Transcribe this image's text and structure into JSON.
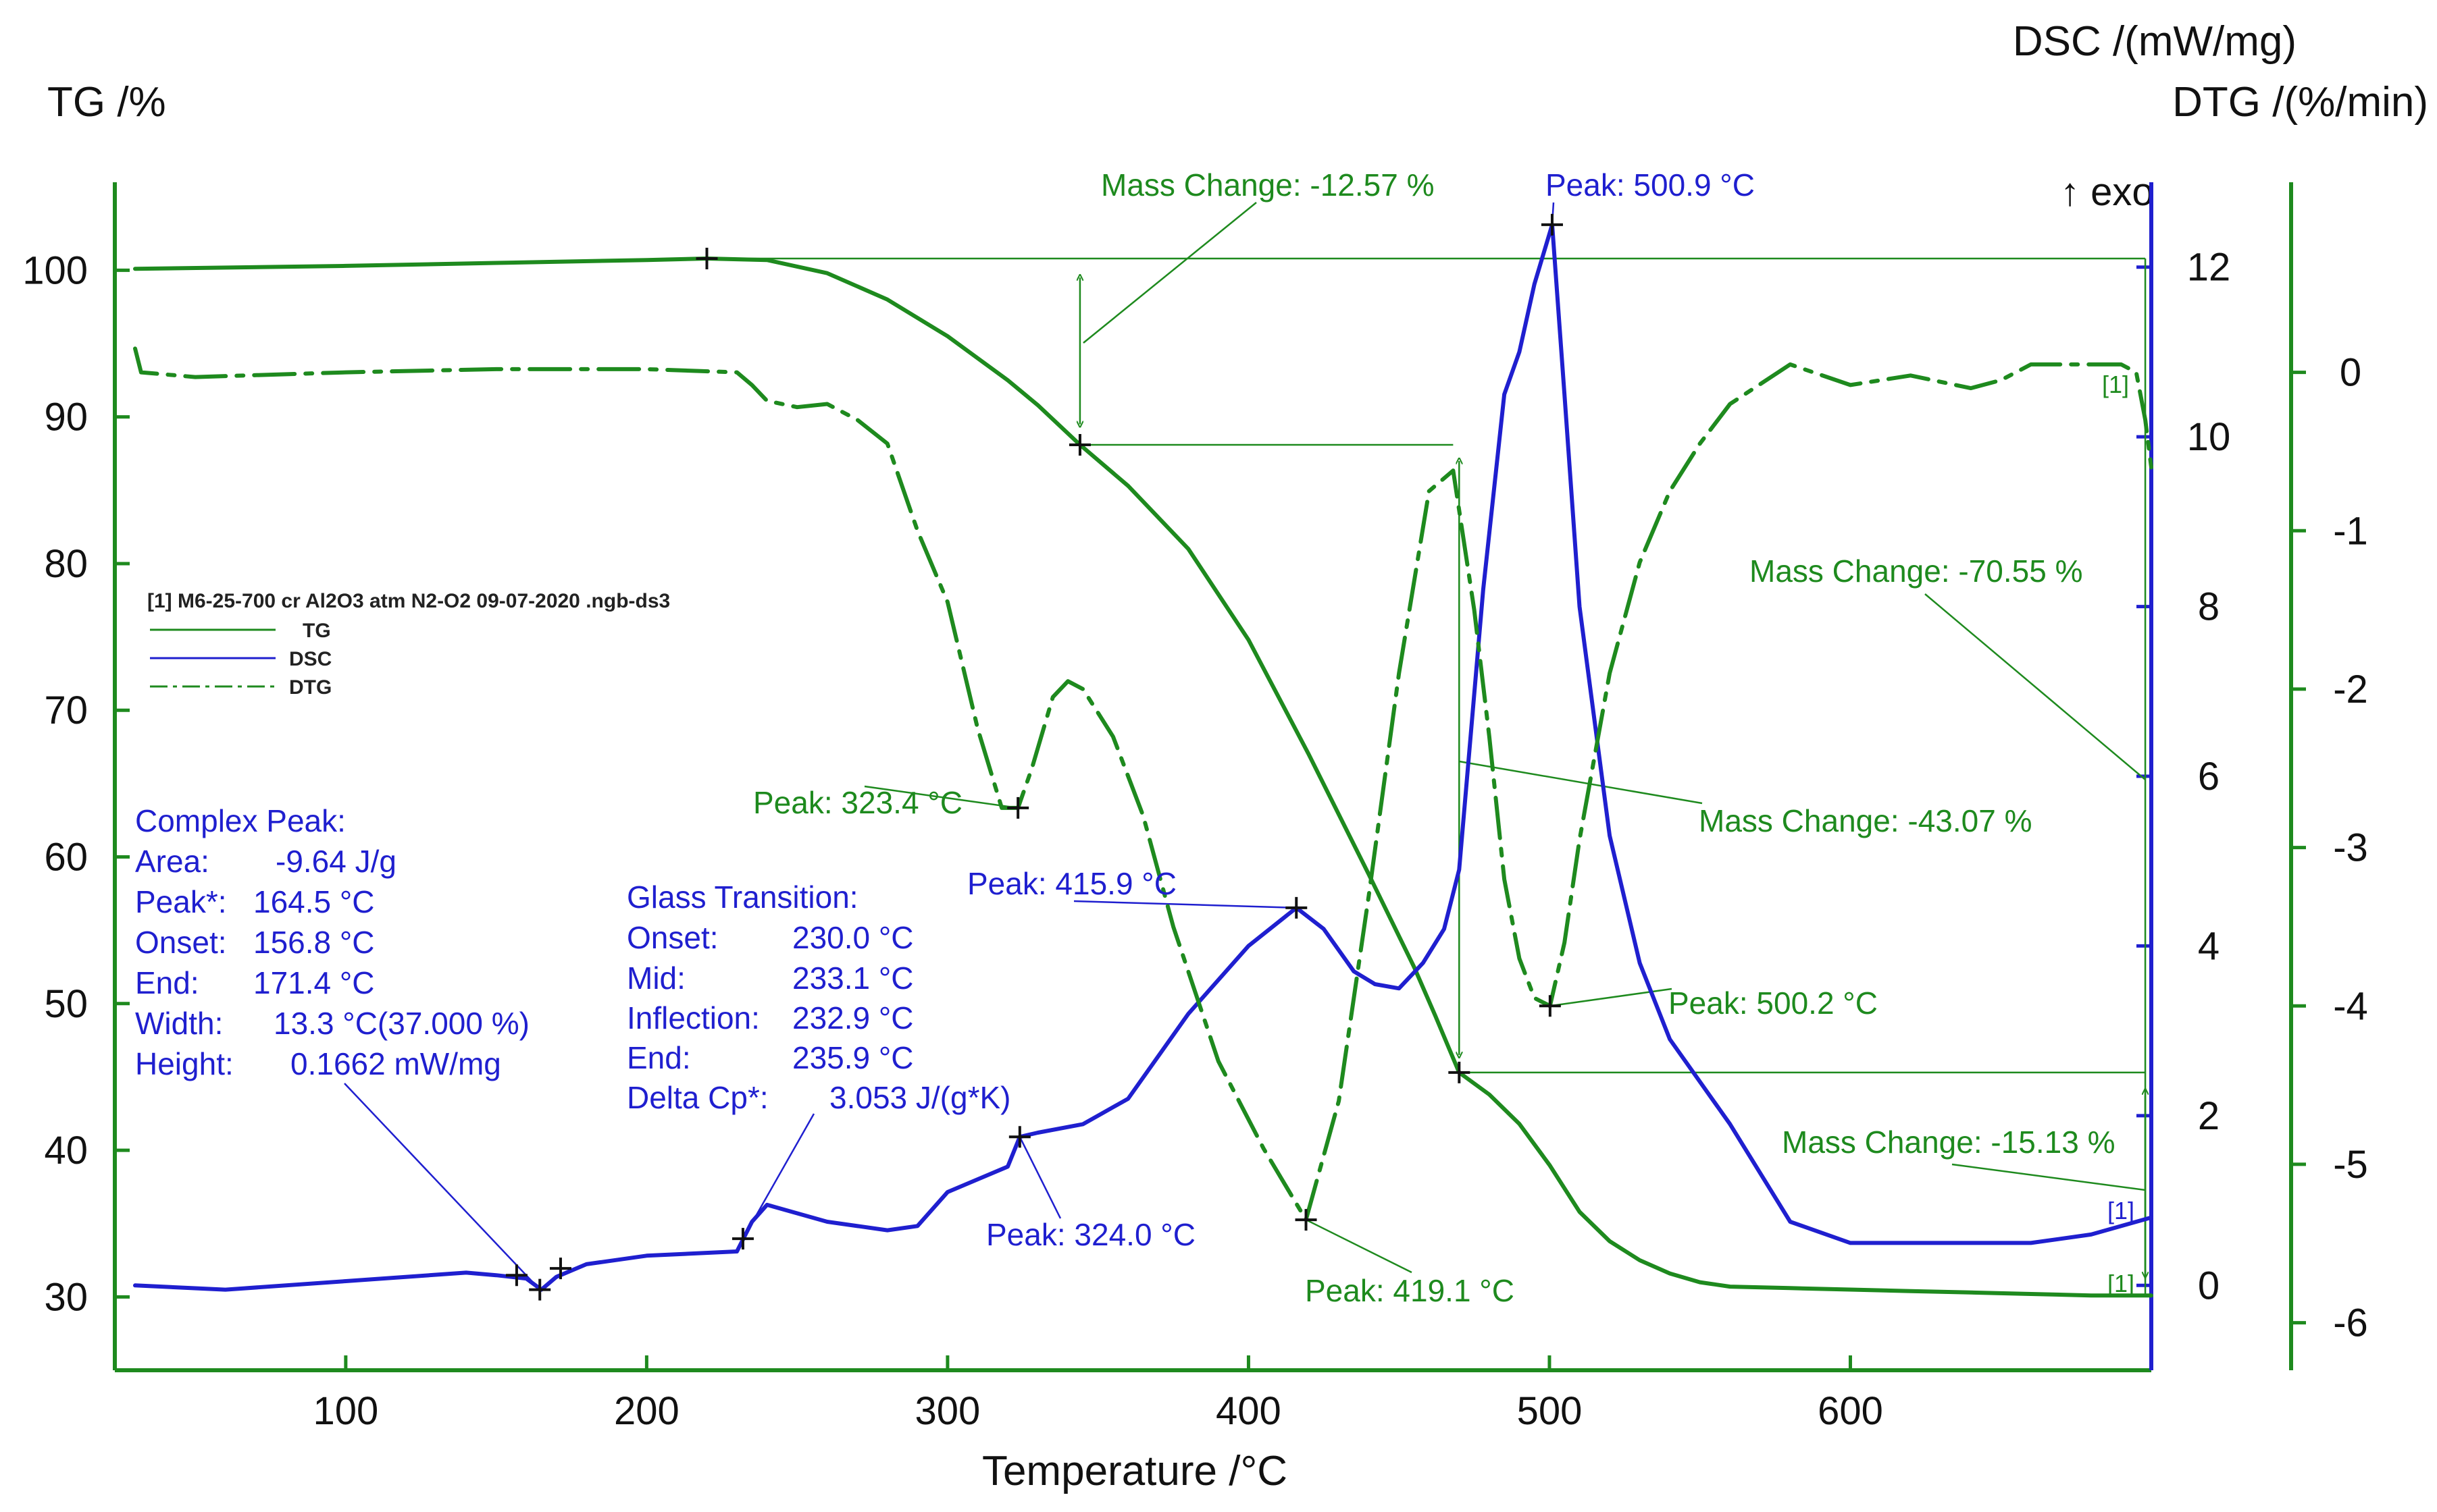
{
  "chart_data": {
    "type": "line",
    "axes": {
      "x": {
        "label": "Temperature /°C",
        "range": [
          30,
          700
        ],
        "ticks": [
          100,
          200,
          300,
          400,
          500,
          600
        ]
      },
      "y_tg": {
        "label": "TG /%",
        "range": [
          25,
          106
        ],
        "ticks": [
          100,
          90,
          80,
          70,
          60,
          50,
          40,
          30
        ]
      },
      "y_dsc": {
        "label": "DSC /(mW/mg)",
        "range": [
          -1,
          13
        ],
        "ticks": [
          12,
          10,
          8,
          6,
          4,
          2,
          0
        ],
        "arrow_label": "↑ exo"
      },
      "y_dtg": {
        "label": "DTG /(%/min)",
        "range": [
          -6.3,
          1.2
        ],
        "ticks": [
          0,
          -1,
          -2,
          -3,
          -4,
          -5,
          -6
        ]
      }
    },
    "legend": {
      "file": "[1] M6-25-700 cr Al2O3 atm N2-O2 09-07-2020 .ngb-ds3",
      "items": [
        "TG",
        "DSC",
        "DTG"
      ]
    },
    "series": [
      {
        "name": "TG",
        "axis": "y_tg",
        "color": "#1e8a1e",
        "dash": "solid",
        "x": [
          30,
          100,
          150,
          200,
          220,
          240,
          260,
          280,
          300,
          320,
          330,
          344,
          360,
          380,
          400,
          420,
          440,
          455,
          462,
          470,
          480,
          490,
          500,
          510,
          520,
          530,
          540,
          550,
          560,
          580,
          600,
          620,
          640,
          660,
          680,
          700
        ],
        "y": [
          100.1,
          100.3,
          100.5,
          100.7,
          100.8,
          100.7,
          99.8,
          98.0,
          95.5,
          92.5,
          90.8,
          88.1,
          85.3,
          81.0,
          74.8,
          67.0,
          58.8,
          52.5,
          49.2,
          45.3,
          43.8,
          41.8,
          39.0,
          35.8,
          33.8,
          32.5,
          31.6,
          31.0,
          30.7,
          30.6,
          30.5,
          30.4,
          30.3,
          30.2,
          30.1,
          30.1
        ]
      },
      {
        "name": "DSC",
        "axis": "y_dsc",
        "color": "#1f1fcf",
        "dash": "solid",
        "x": [
          30,
          60,
          100,
          140,
          150,
          160,
          165,
          170,
          180,
          200,
          230,
          235,
          240,
          260,
          280,
          290,
          300,
          310,
          320,
          324,
          330,
          345,
          360,
          380,
          400,
          415.9,
          425,
          435,
          442,
          450,
          458,
          465,
          470,
          478,
          485,
          490,
          495,
          500.9,
          505,
          510,
          520,
          530,
          540,
          560,
          580,
          600,
          620,
          640,
          660,
          680,
          700
        ],
        "y": [
          0.0,
          -0.05,
          0.05,
          0.15,
          0.12,
          0.08,
          -0.05,
          0.1,
          0.25,
          0.35,
          0.4,
          0.75,
          0.95,
          0.75,
          0.65,
          0.7,
          1.1,
          1.25,
          1.4,
          1.75,
          1.8,
          1.9,
          2.2,
          3.2,
          4.0,
          4.45,
          4.2,
          3.7,
          3.55,
          3.5,
          3.8,
          4.2,
          4.9,
          8.2,
          10.5,
          11.0,
          11.8,
          12.5,
          10.5,
          8.0,
          5.3,
          3.8,
          2.9,
          1.9,
          0.75,
          0.5,
          0.5,
          0.5,
          0.5,
          0.6,
          0.8
        ]
      },
      {
        "name": "DTG",
        "axis": "y_dtg",
        "color": "#1e8a1e",
        "dash": "dashdot",
        "x": [
          30,
          32,
          50,
          100,
          150,
          200,
          230,
          235,
          240,
          250,
          260,
          270,
          280,
          290,
          300,
          310,
          318,
          323.4,
          328,
          335,
          340,
          345,
          355,
          365,
          375,
          390,
          405,
          419.1,
          430,
          440,
          450,
          460,
          468,
          475,
          480,
          485,
          490,
          495,
          500.2,
          505,
          510,
          520,
          530,
          540,
          550,
          560,
          580,
          600,
          620,
          640,
          650,
          660,
          680,
          690,
          695,
          698,
          700
        ],
        "y": [
          0.15,
          0.0,
          -0.03,
          0.0,
          0.02,
          0.02,
          0.0,
          -0.08,
          -0.18,
          -0.22,
          -0.2,
          -0.3,
          -0.45,
          -1.0,
          -1.45,
          -2.25,
          -2.75,
          -2.75,
          -2.5,
          -2.05,
          -1.95,
          -2.0,
          -2.3,
          -2.8,
          -3.5,
          -4.35,
          -4.9,
          -5.35,
          -4.6,
          -3.3,
          -1.9,
          -0.75,
          -0.62,
          -1.5,
          -2.3,
          -3.2,
          -3.7,
          -3.95,
          -4.0,
          -3.6,
          -2.95,
          -1.9,
          -1.2,
          -0.75,
          -0.45,
          -0.2,
          0.05,
          -0.08,
          -0.02,
          -0.1,
          -0.05,
          0.05,
          0.05,
          0.05,
          0.0,
          -0.3,
          -0.6
        ]
      }
    ],
    "annotations": {
      "mass_change_1": "Mass Change: -12.57 %",
      "mass_change_2": "Mass Change: -70.55 %",
      "mass_change_3": "Mass Change: -43.07 %",
      "mass_change_4": "Mass Change: -15.13 %",
      "peak_dsc_500": "Peak: 500.9 °C",
      "peak_dtg_323": "Peak: 323.4 °C",
      "peak_dsc_416": "Peak: 415.9 °C",
      "peak_dtg_500": "Peak: 500.2 °C",
      "peak_dsc_324": "Peak: 324.0 °C",
      "peak_dtg_419": "Peak: 419.1 °C",
      "marker_1": "[1]",
      "complex_peak": {
        "title": "Complex Peak:",
        "rows": [
          [
            "Area:",
            "-9.64 J/g"
          ],
          [
            "Peak*:",
            "164.5 °C"
          ],
          [
            "Onset:",
            "156.8 °C"
          ],
          [
            "End:",
            "171.4 °C"
          ],
          [
            "Width:",
            "13.3 °C(37.000 %)"
          ],
          [
            "Height:",
            "0.1662 mW/mg"
          ]
        ]
      },
      "glass_transition": {
        "title": "Glass Transition:",
        "rows": [
          [
            "Onset:",
            "230.0 °C"
          ],
          [
            "Mid:",
            "233.1 °C"
          ],
          [
            "Inflection:",
            "232.9 °C"
          ],
          [
            "End:",
            "235.9 °C"
          ],
          [
            "Delta Cp*:",
            "3.053 J/(g*K)"
          ]
        ]
      }
    },
    "colors": {
      "tg": "#1e8a1e",
      "dsc": "#1f1fcf",
      "dtg": "#1e8a1e",
      "axis_left": "#1e8a1e",
      "axis_dsc": "#1f1fcf"
    }
  }
}
